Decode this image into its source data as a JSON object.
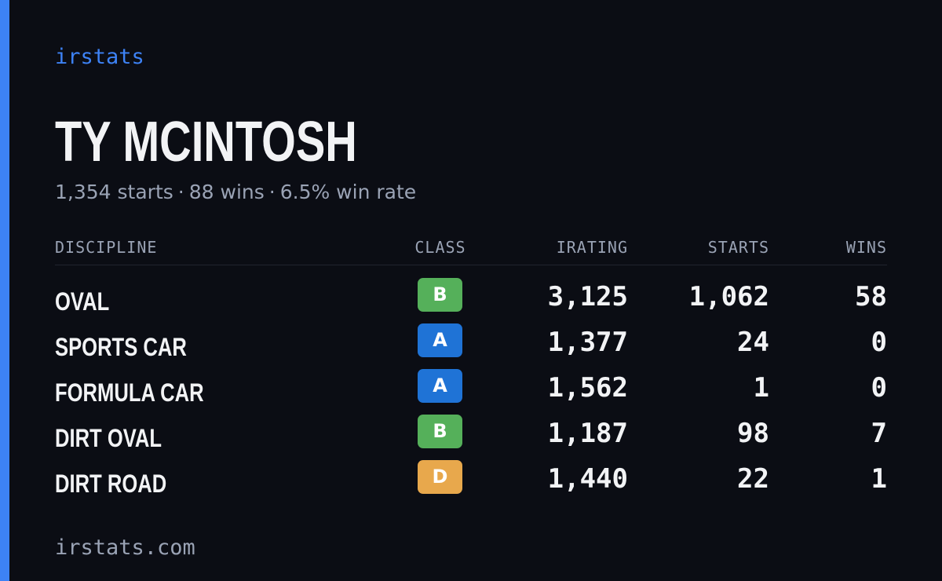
{
  "brand": "irstats",
  "driver": {
    "name": "TY MCINTOSH",
    "starts": "1,354 starts",
    "wins": "88 wins",
    "win_rate": "6.5% win rate"
  },
  "table": {
    "headers": {
      "discipline": "DISCIPLINE",
      "class": "CLASS",
      "irating": "IRATING",
      "starts": "STARTS",
      "wins": "WINS"
    },
    "rows": [
      {
        "discipline": "OVAL",
        "class": "B",
        "class_color": "#55b05a",
        "irating": "3,125",
        "starts": "1,062",
        "wins": "58"
      },
      {
        "discipline": "SPORTS CAR",
        "class": "A",
        "class_color": "#1f73d6",
        "irating": "1,377",
        "starts": "24",
        "wins": "0"
      },
      {
        "discipline": "FORMULA CAR",
        "class": "A",
        "class_color": "#1f73d6",
        "irating": "1,562",
        "starts": "1",
        "wins": "0"
      },
      {
        "discipline": "DIRT OVAL",
        "class": "B",
        "class_color": "#55b05a",
        "irating": "1,187",
        "starts": "98",
        "wins": "7"
      },
      {
        "discipline": "DIRT ROAD",
        "class": "D",
        "class_color": "#e8a84c",
        "irating": "1,440",
        "starts": "22",
        "wins": "1"
      }
    ]
  },
  "footer": "irstats.com",
  "colors": {
    "background": "#0b0d14",
    "accent": "#3d82f5",
    "text": "#f2f3f5",
    "muted": "#9aa3b5"
  }
}
